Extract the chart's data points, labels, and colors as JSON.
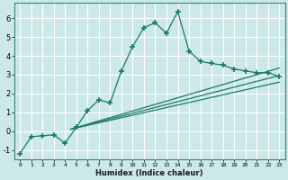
{
  "xlabel": "Humidex (Indice chaleur)",
  "background_color": "#cce8e8",
  "grid_color": "#ffffff",
  "line_color": "#1a7a6a",
  "xlim": [
    -0.5,
    23.5
  ],
  "ylim": [
    -1.5,
    6.8
  ],
  "yticks": [
    -1,
    0,
    1,
    2,
    3,
    4,
    5,
    6
  ],
  "xticks": [
    0,
    1,
    2,
    3,
    4,
    5,
    6,
    7,
    8,
    9,
    10,
    11,
    12,
    13,
    14,
    15,
    16,
    17,
    18,
    19,
    20,
    21,
    22,
    23
  ],
  "series1_x": [
    0,
    1,
    2,
    3,
    4,
    5,
    6,
    7,
    8,
    9,
    10,
    11,
    12,
    13,
    14,
    15,
    16,
    17,
    18,
    19,
    20,
    21,
    22,
    23
  ],
  "series1_y": [
    -1.2,
    -0.3,
    -0.25,
    -0.2,
    -0.65,
    0.2,
    1.1,
    1.65,
    1.5,
    3.2,
    4.5,
    5.5,
    5.75,
    5.2,
    6.35,
    4.25,
    3.7,
    3.6,
    3.5,
    3.3,
    3.2,
    3.1,
    3.1,
    2.9
  ],
  "series2_x": [
    4.5,
    23
  ],
  "series2_y": [
    0.1,
    3.35
  ],
  "series3_x": [
    4.5,
    23
  ],
  "series3_y": [
    0.1,
    2.95
  ],
  "series4_x": [
    4.5,
    23
  ],
  "series4_y": [
    0.1,
    2.6
  ]
}
